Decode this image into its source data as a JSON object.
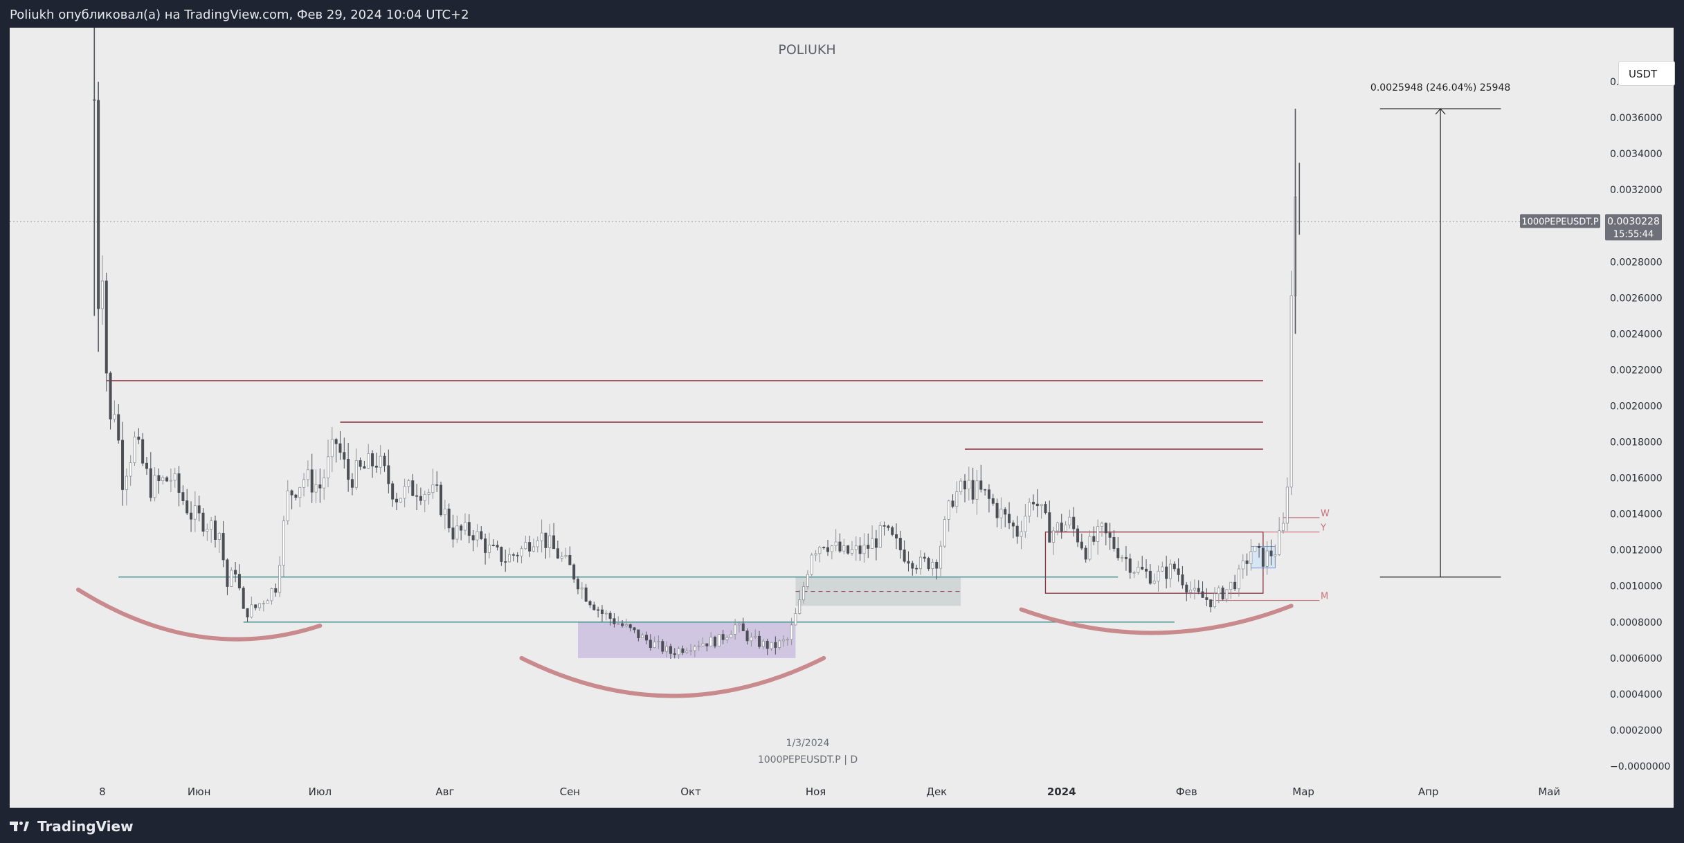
{
  "header": {
    "caption": "Poliukh опубликовал(а) на TradingView.com, Фев 29, 2024 10:04 UTC+2"
  },
  "footer": {
    "brand": "TradingView"
  },
  "chart_data": {
    "type": "candlestick",
    "watermark": "POLIUKH",
    "currency_button": "USDT",
    "symbol_label": "1000PEPEUSDT.P",
    "interval_label": "1000PEPEUSDT.P | D",
    "date_label": "1/3/2024",
    "last_price": "0.0030228",
    "countdown": "15:55:44",
    "measure_label": "0.0025948 (246.04%) 25948",
    "y_ticks": [
      "0.0038000",
      "0.0036000",
      "0.0034000",
      "0.0032000",
      "0.0028000",
      "0.0026000",
      "0.0024000",
      "0.0022000",
      "0.0020000",
      "0.0018000",
      "0.0016000",
      "0.0014000",
      "0.0012000",
      "0.0010000",
      "0.0008000",
      "0.0006000",
      "0.0004000",
      "0.0002000",
      "−0.0000000"
    ],
    "y_tick_values": [
      0.0038,
      0.0036,
      0.0034,
      0.0032,
      0.0028,
      0.0026,
      0.0024,
      0.0022,
      0.002,
      0.0018,
      0.0016,
      0.0014,
      0.0012,
      0.001,
      0.0008,
      0.0006,
      0.0004,
      0.0002,
      0.0
    ],
    "x_ticks": [
      {
        "label": "8",
        "date": "2023-05-08"
      },
      {
        "label": "Июн",
        "date": "2023-06-01"
      },
      {
        "label": "Июл",
        "date": "2023-07-01"
      },
      {
        "label": "Авг",
        "date": "2023-08-01"
      },
      {
        "label": "Сен",
        "date": "2023-09-01"
      },
      {
        "label": "Окт",
        "date": "2023-10-01"
      },
      {
        "label": "Ноя",
        "date": "2023-11-01"
      },
      {
        "label": "Дек",
        "date": "2023-12-01"
      },
      {
        "label": "2024",
        "date": "2024-01-01",
        "bold": true
      },
      {
        "label": "Фев",
        "date": "2024-02-01"
      },
      {
        "label": "Мар",
        "date": "2024-03-01"
      },
      {
        "label": "Апр",
        "date": "2024-04-01"
      },
      {
        "label": "Май",
        "date": "2024-05-01"
      }
    ],
    "ylim": [
      -5e-05,
      0.0041
    ],
    "xlim": [
      "2023-04-15",
      "2024-05-14"
    ],
    "close_path": [
      [
        "2023-05-06",
        0.0037
      ],
      [
        "2023-05-07",
        0.0026
      ],
      [
        "2023-05-08",
        0.0028
      ],
      [
        "2023-05-09",
        0.0022
      ],
      [
        "2023-05-10",
        0.0019
      ],
      [
        "2023-05-11",
        0.002
      ],
      [
        "2023-05-13",
        0.0016
      ],
      [
        "2023-05-16",
        0.0018
      ],
      [
        "2023-05-20",
        0.00155
      ],
      [
        "2023-05-25",
        0.0016
      ],
      [
        "2023-05-30",
        0.0014
      ],
      [
        "2023-06-03",
        0.00135
      ],
      [
        "2023-06-06",
        0.0013
      ],
      [
        "2023-06-08",
        0.001
      ],
      [
        "2023-06-10",
        0.0011
      ],
      [
        "2023-06-12",
        0.00085
      ],
      [
        "2023-06-15",
        0.00088
      ],
      [
        "2023-06-18",
        0.00095
      ],
      [
        "2023-06-20",
        0.001
      ],
      [
        "2023-06-23",
        0.0015
      ],
      [
        "2023-06-27",
        0.0016
      ],
      [
        "2023-07-01",
        0.00155
      ],
      [
        "2023-07-05",
        0.0018
      ],
      [
        "2023-07-08",
        0.0016
      ],
      [
        "2023-07-12",
        0.00165
      ],
      [
        "2023-07-15",
        0.0017
      ],
      [
        "2023-07-20",
        0.0015
      ],
      [
        "2023-07-25",
        0.00155
      ],
      [
        "2023-07-30",
        0.0015
      ],
      [
        "2023-08-03",
        0.0013
      ],
      [
        "2023-08-08",
        0.0013
      ],
      [
        "2023-08-12",
        0.0012
      ],
      [
        "2023-08-16",
        0.00115
      ],
      [
        "2023-08-20",
        0.0012
      ],
      [
        "2023-08-24",
        0.0013
      ],
      [
        "2023-08-28",
        0.0012
      ],
      [
        "2023-09-01",
        0.0011
      ],
      [
        "2023-09-05",
        0.00095
      ],
      [
        "2023-09-09",
        0.00085
      ],
      [
        "2023-09-14",
        0.00078
      ],
      [
        "2023-09-20",
        0.0007
      ],
      [
        "2023-09-26",
        0.00063
      ],
      [
        "2023-10-02",
        0.00068
      ],
      [
        "2023-10-08",
        0.0007
      ],
      [
        "2023-10-12",
        0.00078
      ],
      [
        "2023-10-16",
        0.0007
      ],
      [
        "2023-10-21",
        0.00066
      ],
      [
        "2023-10-25",
        0.0007
      ],
      [
        "2023-10-28",
        0.0009
      ],
      [
        "2023-10-31",
        0.0012
      ],
      [
        "2023-11-03",
        0.00125
      ],
      [
        "2023-11-08",
        0.00118
      ],
      [
        "2023-11-13",
        0.0012
      ],
      [
        "2023-11-18",
        0.0013
      ],
      [
        "2023-11-23",
        0.00118
      ],
      [
        "2023-11-27",
        0.00112
      ],
      [
        "2023-12-01",
        0.00115
      ],
      [
        "2023-12-05",
        0.0015
      ],
      [
        "2023-12-09",
        0.00155
      ],
      [
        "2023-12-13",
        0.0015
      ],
      [
        "2023-12-17",
        0.0014
      ],
      [
        "2023-12-21",
        0.0013
      ],
      [
        "2023-12-25",
        0.0015
      ],
      [
        "2023-12-29",
        0.0013
      ],
      [
        "2024-01-03",
        0.00135
      ],
      [
        "2024-01-07",
        0.0012
      ],
      [
        "2024-01-11",
        0.0013
      ],
      [
        "2024-01-15",
        0.0012
      ],
      [
        "2024-01-19",
        0.0011
      ],
      [
        "2024-01-24",
        0.00105
      ],
      [
        "2024-01-29",
        0.0011
      ],
      [
        "2024-02-03",
        0.00095
      ],
      [
        "2024-02-07",
        0.00092
      ],
      [
        "2024-02-11",
        0.00098
      ],
      [
        "2024-02-14",
        0.00105
      ],
      [
        "2024-02-17",
        0.0012
      ],
      [
        "2024-02-20",
        0.00115
      ],
      [
        "2024-02-23",
        0.0012
      ],
      [
        "2024-02-25",
        0.00132
      ],
      [
        "2024-02-26",
        0.0016
      ],
      [
        "2024-02-27",
        0.0026
      ],
      [
        "2024-02-28",
        0.0032
      ],
      [
        "2024-02-29",
        0.0030228
      ]
    ],
    "spikes": [
      {
        "date": "2023-05-06",
        "high": 0.0041,
        "low": 0.0025
      },
      {
        "date": "2023-05-07",
        "high": 0.0038,
        "low": 0.0023
      },
      {
        "date": "2024-02-28",
        "high": 0.00365,
        "low": 0.0024
      },
      {
        "date": "2024-02-29",
        "high": 0.00335,
        "low": 0.00295
      }
    ],
    "resistance_lines": [
      {
        "from": "2023-05-09",
        "to": "2024-02-20",
        "y": 0.00214,
        "color": "#8c3040"
      },
      {
        "from": "2023-07-06",
        "to": "2024-02-20",
        "y": 0.00191,
        "color": "#8c3040"
      },
      {
        "from": "2023-12-08",
        "to": "2024-02-20",
        "y": 0.00176,
        "color": "#8c3040"
      }
    ],
    "support_lines": [
      {
        "from": "2023-05-12",
        "to": "2024-01-15",
        "y": 0.00105,
        "color": "#3a8a8a"
      },
      {
        "from": "2023-06-12",
        "to": "2024-01-29",
        "y": 0.0008,
        "color": "#3a8a8a"
      }
    ],
    "level_labels": [
      {
        "text": "W",
        "y": 0.00138
      },
      {
        "text": "Y",
        "y": 0.0013
      },
      {
        "text": "M",
        "y": 0.00092
      }
    ],
    "zones": [
      {
        "from": "2023-09-03",
        "to": "2023-10-27",
        "y0": 0.0006,
        "y1": 0.0008,
        "color": "#cbbfdf"
      },
      {
        "from": "2023-10-27",
        "to": "2023-12-07",
        "y0": 0.00089,
        "y1": 0.00105,
        "color": "#ccd3d2"
      }
    ],
    "arcs": [
      {
        "from": "2023-05-02",
        "to": "2023-07-01",
        "y_ends": 0.00098,
        "y_mid": 0.00072,
        "y_end_right": 0.00078
      },
      {
        "from": "2023-08-20",
        "to": "2023-11-03",
        "y_ends": 0.0006,
        "y_mid": 0.00039,
        "y_end_right": 0.0006
      },
      {
        "from": "2023-12-22",
        "to": "2024-02-27",
        "y_ends": 0.00087,
        "y_mid": 0.00074,
        "y_end_right": 0.00089
      }
    ],
    "measure": {
      "x": "2024-04-04",
      "from": 0.00105,
      "to": 0.00365,
      "half_width_days": 4
    }
  }
}
